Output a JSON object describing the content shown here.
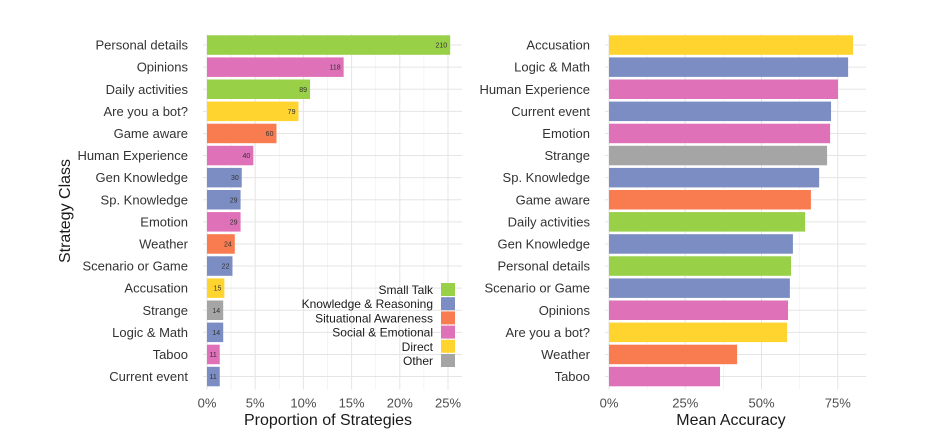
{
  "chart_data": [
    {
      "type": "bar",
      "orientation": "horizontal",
      "ylabel": "Strategy Class",
      "xlabel": "Proportion of Strategies",
      "xlim": [
        0,
        0.27
      ],
      "xticks": [
        0,
        0.05,
        0.1,
        0.15,
        0.2,
        0.25
      ],
      "xtick_labels": [
        "0%",
        "5%",
        "10%",
        "15%",
        "20%",
        "25%"
      ],
      "grid": true,
      "legend_position": "bottom-right",
      "categories": [
        "Personal details",
        "Opinions",
        "Daily activities",
        "Are you a bot?",
        "Game aware",
        "Human Experience",
        "Gen Knowledge",
        "Sp. Knowledge",
        "Emotion",
        "Weather",
        "Scenario or Game",
        "Accusation",
        "Strange",
        "Logic & Math",
        "Taboo",
        "Current event"
      ],
      "counts": [
        210,
        118,
        89,
        79,
        60,
        40,
        30,
        29,
        29,
        24,
        22,
        15,
        14,
        14,
        11,
        11
      ],
      "groups": [
        "Small Talk",
        "Social & Emotional",
        "Small Talk",
        "Direct",
        "Situational Awareness",
        "Social & Emotional",
        "Knowledge & Reasoning",
        "Knowledge & Reasoning",
        "Social & Emotional",
        "Situational Awareness",
        "Knowledge & Reasoning",
        "Direct",
        "Other",
        "Knowledge & Reasoning",
        "Social & Emotional",
        "Knowledge & Reasoning"
      ]
    },
    {
      "type": "bar",
      "orientation": "horizontal",
      "xlabel": "Mean Accuracy",
      "xlim": [
        0,
        0.84
      ],
      "xticks": [
        0,
        0.25,
        0.5,
        0.75
      ],
      "xtick_labels": [
        "0%",
        "25%",
        "50%",
        "75%"
      ],
      "grid": true,
      "categories": [
        "Accusation",
        "Logic & Math",
        "Human Experience",
        "Current event",
        "Emotion",
        "Strange",
        "Sp. Knowledge",
        "Game aware",
        "Daily activities",
        "Gen Knowledge",
        "Personal details",
        "Scenario or Game",
        "Opinions",
        "Are you a bot?",
        "Weather",
        "Taboo"
      ],
      "values": [
        0.8,
        0.784,
        0.751,
        0.728,
        0.725,
        0.715,
        0.689,
        0.662,
        0.643,
        0.603,
        0.597,
        0.593,
        0.587,
        0.584,
        0.42,
        0.364
      ],
      "groups": [
        "Direct",
        "Knowledge & Reasoning",
        "Social & Emotional",
        "Knowledge & Reasoning",
        "Social & Emotional",
        "Other",
        "Knowledge & Reasoning",
        "Situational Awareness",
        "Small Talk",
        "Knowledge & Reasoning",
        "Small Talk",
        "Knowledge & Reasoning",
        "Social & Emotional",
        "Direct",
        "Situational Awareness",
        "Social & Emotional"
      ]
    }
  ],
  "legend": [
    {
      "label": "Small Talk",
      "color": "#98D048"
    },
    {
      "label": "Knowledge & Reasoning",
      "color": "#7B8DC2"
    },
    {
      "label": "Situational Awareness",
      "color": "#F97B50"
    },
    {
      "label": "Social & Emotional",
      "color": "#DE71B7"
    },
    {
      "label": "Direct",
      "color": "#FFD42E"
    },
    {
      "label": "Other",
      "color": "#A5A5A5"
    }
  ]
}
